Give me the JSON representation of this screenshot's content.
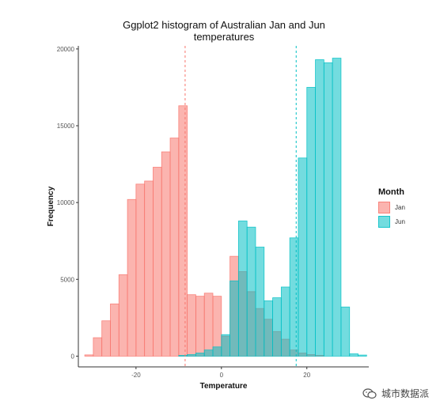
{
  "chart_data": {
    "type": "histogram",
    "title": "Ggplot2 histogram of Australian Jan and Jun temperatures",
    "title_lines": [
      "Ggplot2 histogram of Australian Jan and Jun",
      "temperatures"
    ],
    "xlabel": "Temperature",
    "ylabel": "Frequency",
    "xlim": [
      -33.5,
      34.5
    ],
    "ylim": [
      -700,
      20200
    ],
    "x_ticks": [
      -20,
      0,
      20
    ],
    "x_tick_labels": [
      "-20",
      "0",
      "20"
    ],
    "y_ticks": [
      0,
      5000,
      10000,
      15000,
      20000
    ],
    "y_tick_labels": [
      "0",
      "5000",
      "10000",
      "15000",
      "20000"
    ],
    "bin_width": 2,
    "grid": false,
    "legend": {
      "title": "Month",
      "placement": "right",
      "entries": [
        "Jan",
        "Jun"
      ]
    },
    "series": [
      {
        "name": "Jan",
        "color": "#F8766D",
        "mean": -8.5,
        "bins": [
          [
            -31,
            80
          ],
          [
            -29,
            1200
          ],
          [
            -27,
            2300
          ],
          [
            -25,
            3400
          ],
          [
            -23,
            5300
          ],
          [
            -21,
            10200
          ],
          [
            -19,
            11200
          ],
          [
            -17,
            11400
          ],
          [
            -15,
            12300
          ],
          [
            -13,
            13300
          ],
          [
            -11,
            14200
          ],
          [
            -9,
            16300
          ],
          [
            -7,
            4000
          ],
          [
            -5,
            3900
          ],
          [
            -3,
            4100
          ],
          [
            -1,
            3900
          ],
          [
            1,
            1300
          ],
          [
            3,
            6500
          ],
          [
            5,
            5500
          ],
          [
            7,
            4200
          ],
          [
            9,
            3100
          ],
          [
            11,
            2400
          ],
          [
            13,
            1600
          ],
          [
            15,
            1100
          ],
          [
            17,
            400
          ],
          [
            19,
            200
          ],
          [
            21,
            100
          ],
          [
            23,
            50
          ]
        ]
      },
      {
        "name": "Jun",
        "color": "#00BFC4",
        "mean": 17.5,
        "bins": [
          [
            -9,
            50
          ],
          [
            -7,
            100
          ],
          [
            -5,
            200
          ],
          [
            -3,
            400
          ],
          [
            -1,
            600
          ],
          [
            1,
            1400
          ],
          [
            3,
            4900
          ],
          [
            5,
            8800
          ],
          [
            7,
            8400
          ],
          [
            9,
            7100
          ],
          [
            11,
            3600
          ],
          [
            13,
            3800
          ],
          [
            15,
            4500
          ],
          [
            17,
            7700
          ],
          [
            19,
            12900
          ],
          [
            21,
            17500
          ],
          [
            23,
            19300
          ],
          [
            25,
            19100
          ],
          [
            27,
            19400
          ],
          [
            29,
            3200
          ],
          [
            31,
            150
          ],
          [
            33,
            70
          ]
        ]
      }
    ]
  },
  "watermark": {
    "icon": "wechat-icon",
    "text": "城市数据派"
  }
}
